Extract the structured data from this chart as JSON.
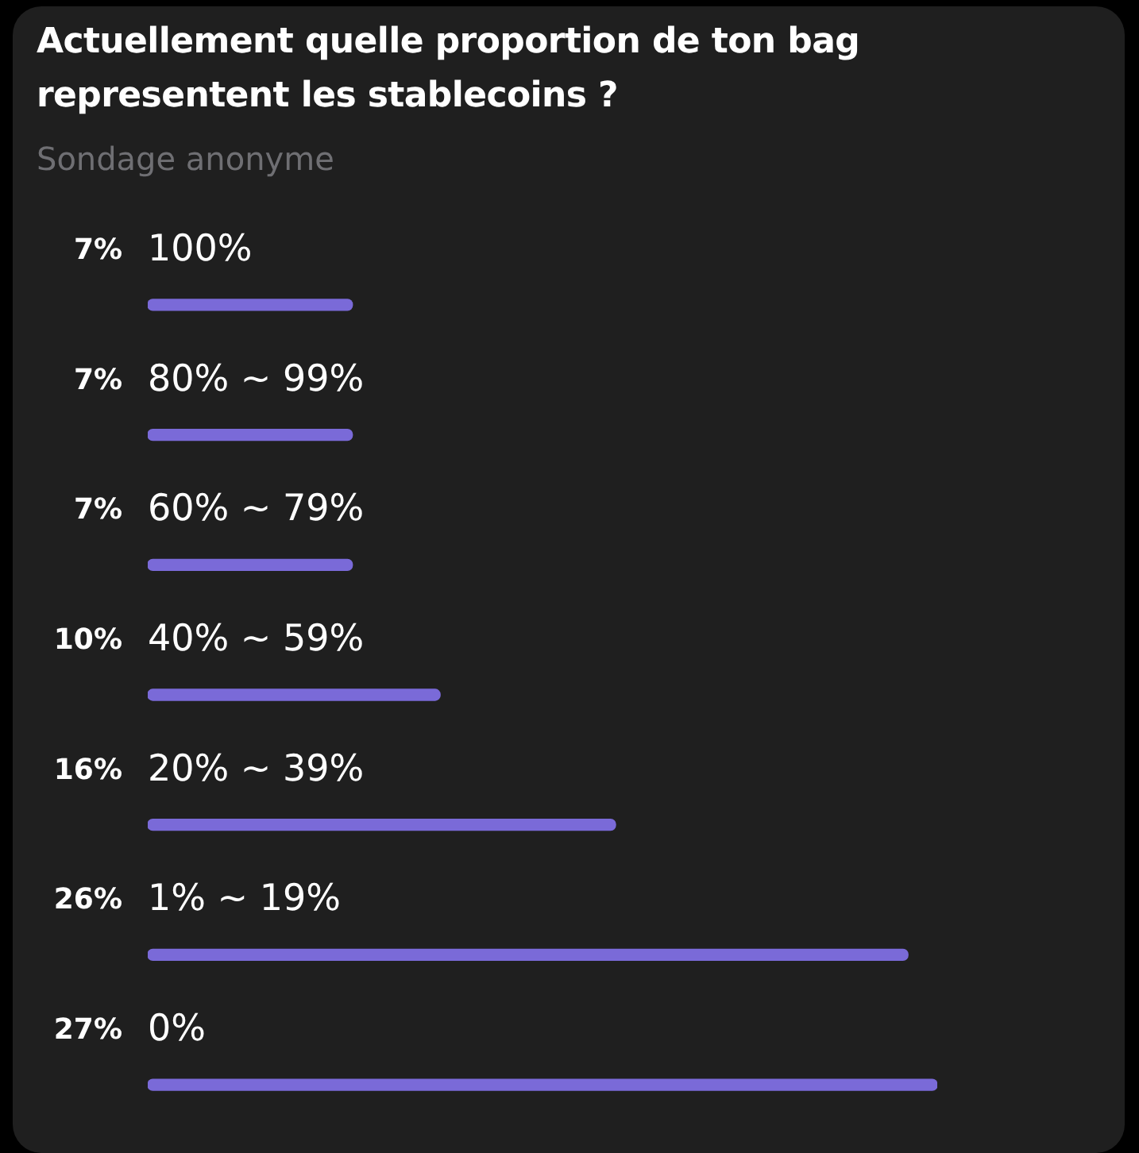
{
  "chart_data": {
    "type": "bar",
    "orientation": "horizontal",
    "title": "Actuellement quelle proportion de ton bag representent les stablecoins ?",
    "subtitle": "Sondage anonyme",
    "categories": [
      "100%",
      "80% ~ 99%",
      "60% ~ 79%",
      "40% ~ 59%",
      "20% ~ 39%",
      "1% ~ 19%",
      "0%"
    ],
    "values": [
      7,
      7,
      7,
      10,
      16,
      26,
      27
    ],
    "value_labels": [
      "7%",
      "7%",
      "7%",
      "10%",
      "16%",
      "26%",
      "27%"
    ],
    "color": "#7a6ad8",
    "legend": false,
    "tick_labels": false
  }
}
